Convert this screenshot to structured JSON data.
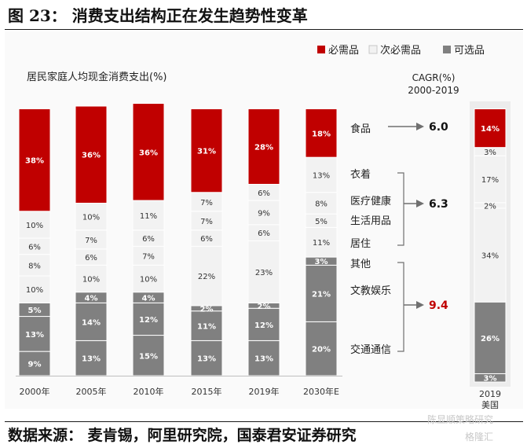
{
  "header": {
    "title": "图 23：  消费支出结构正在发生趋势性变革"
  },
  "footer": {
    "source": "数据来源：  麦肯锡，阿里研究院，国泰君安证券研究"
  },
  "watermark": {
    "line1": "陈显顺策略研究",
    "line2": "格隆汇"
  },
  "colors": {
    "necessity": "#c00000",
    "semi": "#f2f2f2",
    "optional": "#808080",
    "semiBorder": "#c8c8c8",
    "arrow": "#707070",
    "red": "#c00000"
  },
  "chart_data": {
    "type": "bar",
    "title": "居民家庭人均现金消费支出(%)",
    "legend": [
      "必需品",
      "次必需品",
      "可选品"
    ],
    "legend_position": "top-right",
    "categories": [
      "2000年",
      "2005年",
      "2010年",
      "2015年",
      "2019年",
      "2030年E"
    ],
    "bars": [
      {
        "category": "2000年",
        "segments": [
          {
            "value": 9,
            "label": "9%",
            "kind": "optional"
          },
          {
            "value": 13,
            "label": "13%",
            "kind": "optional"
          },
          {
            "value": 5,
            "label": "5%",
            "kind": "optional"
          },
          {
            "value": 10,
            "label": "10%",
            "kind": "semi"
          },
          {
            "value": 8,
            "label": "8%",
            "kind": "semi"
          },
          {
            "value": 6,
            "label": "6%",
            "kind": "semi"
          },
          {
            "value": 10,
            "label": "10%",
            "kind": "semi"
          },
          {
            "value": 38,
            "label": "38%",
            "kind": "necessity"
          }
        ]
      },
      {
        "category": "2005年",
        "segments": [
          {
            "value": 13,
            "label": "13%",
            "kind": "optional"
          },
          {
            "value": 14,
            "label": "14%",
            "kind": "optional"
          },
          {
            "value": 4,
            "label": "4%",
            "kind": "optional"
          },
          {
            "value": 10,
            "label": "10%",
            "kind": "semi"
          },
          {
            "value": 6,
            "label": "6%",
            "kind": "semi"
          },
          {
            "value": 7,
            "label": "7%",
            "kind": "semi"
          },
          {
            "value": 10,
            "label": "10%",
            "kind": "semi"
          },
          {
            "value": 36,
            "label": "36%",
            "kind": "necessity"
          }
        ]
      },
      {
        "category": "2010年",
        "segments": [
          {
            "value": 15,
            "label": "15%",
            "kind": "optional"
          },
          {
            "value": 12,
            "label": "12%",
            "kind": "optional"
          },
          {
            "value": 4,
            "label": "4%",
            "kind": "optional"
          },
          {
            "value": 10,
            "label": "10%",
            "kind": "semi"
          },
          {
            "value": 7,
            "label": "7%",
            "kind": "semi"
          },
          {
            "value": 6,
            "label": "6%",
            "kind": "semi"
          },
          {
            "value": 11,
            "label": "11%",
            "kind": "semi"
          },
          {
            "value": 36,
            "label": "36%",
            "kind": "necessity"
          }
        ]
      },
      {
        "category": "2015年",
        "segments": [
          {
            "value": 13,
            "label": "13%",
            "kind": "optional"
          },
          {
            "value": 11,
            "label": "11%",
            "kind": "optional"
          },
          {
            "value": 2,
            "label": "2%",
            "kind": "optional"
          },
          {
            "value": 22,
            "label": "22%",
            "kind": "semi"
          },
          {
            "value": 6,
            "label": "6%",
            "kind": "semi"
          },
          {
            "value": 7,
            "label": "7%",
            "kind": "semi"
          },
          {
            "value": 7,
            "label": "7%",
            "kind": "semi"
          },
          {
            "value": 31,
            "label": "31%",
            "kind": "necessity"
          }
        ]
      },
      {
        "category": "2019年",
        "segments": [
          {
            "value": 13,
            "label": "13%",
            "kind": "optional"
          },
          {
            "value": 12,
            "label": "12%",
            "kind": "optional"
          },
          {
            "value": 2,
            "label": "2%",
            "kind": "optional"
          },
          {
            "value": 23,
            "label": "23%",
            "kind": "semi"
          },
          {
            "value": 6,
            "label": "6%",
            "kind": "semi"
          },
          {
            "value": 9,
            "label": "9%",
            "kind": "semi"
          },
          {
            "value": 6,
            "label": "6%",
            "kind": "semi"
          },
          {
            "value": 28,
            "label": "28%",
            "kind": "necessity"
          }
        ]
      },
      {
        "category": "2030年E",
        "segments": [
          {
            "value": 20,
            "label": "20%",
            "kind": "optional"
          },
          {
            "value": 21,
            "label": "21%",
            "kind": "optional"
          },
          {
            "value": 3,
            "label": "3%",
            "kind": "optional"
          },
          {
            "value": 11,
            "label": "11%",
            "kind": "semi"
          },
          {
            "value": 5,
            "label": "5%",
            "kind": "semi"
          },
          {
            "value": 8,
            "label": "8%",
            "kind": "semi"
          },
          {
            "value": 13,
            "label": "13%",
            "kind": "semi"
          },
          {
            "value": 18,
            "label": "18%",
            "kind": "necessity"
          }
        ]
      }
    ],
    "us_bar": {
      "label_line1": "2019",
      "label_line2": "美国",
      "segments": [
        {
          "value": 3,
          "label": "3%",
          "kind": "optional"
        },
        {
          "value": 26,
          "label": "26%",
          "kind": "optional"
        },
        {
          "value": 34,
          "label": "34%",
          "kind": "semi"
        },
        {
          "value": 2,
          "label": "2%",
          "kind": "semi"
        },
        {
          "value": 17,
          "label": "17%",
          "kind": "semi"
        },
        {
          "value": 3,
          "label": "3%",
          "kind": "semi"
        },
        {
          "value": 14,
          "label": "14%",
          "kind": "necessity"
        }
      ]
    },
    "cagr": {
      "header_line1": "CAGR(%)",
      "header_line2": "2000-2019",
      "groups": [
        {
          "items": [
            "食品"
          ],
          "value": "6.0",
          "highlight": false
        },
        {
          "items": [
            "衣着",
            "医疗健康",
            "生活用品",
            "居住"
          ],
          "value": "6.3",
          "highlight": false
        },
        {
          "items": [
            "其他",
            "文教娱乐",
            "交通通信"
          ],
          "value": "9.4",
          "highlight": true
        }
      ]
    }
  }
}
